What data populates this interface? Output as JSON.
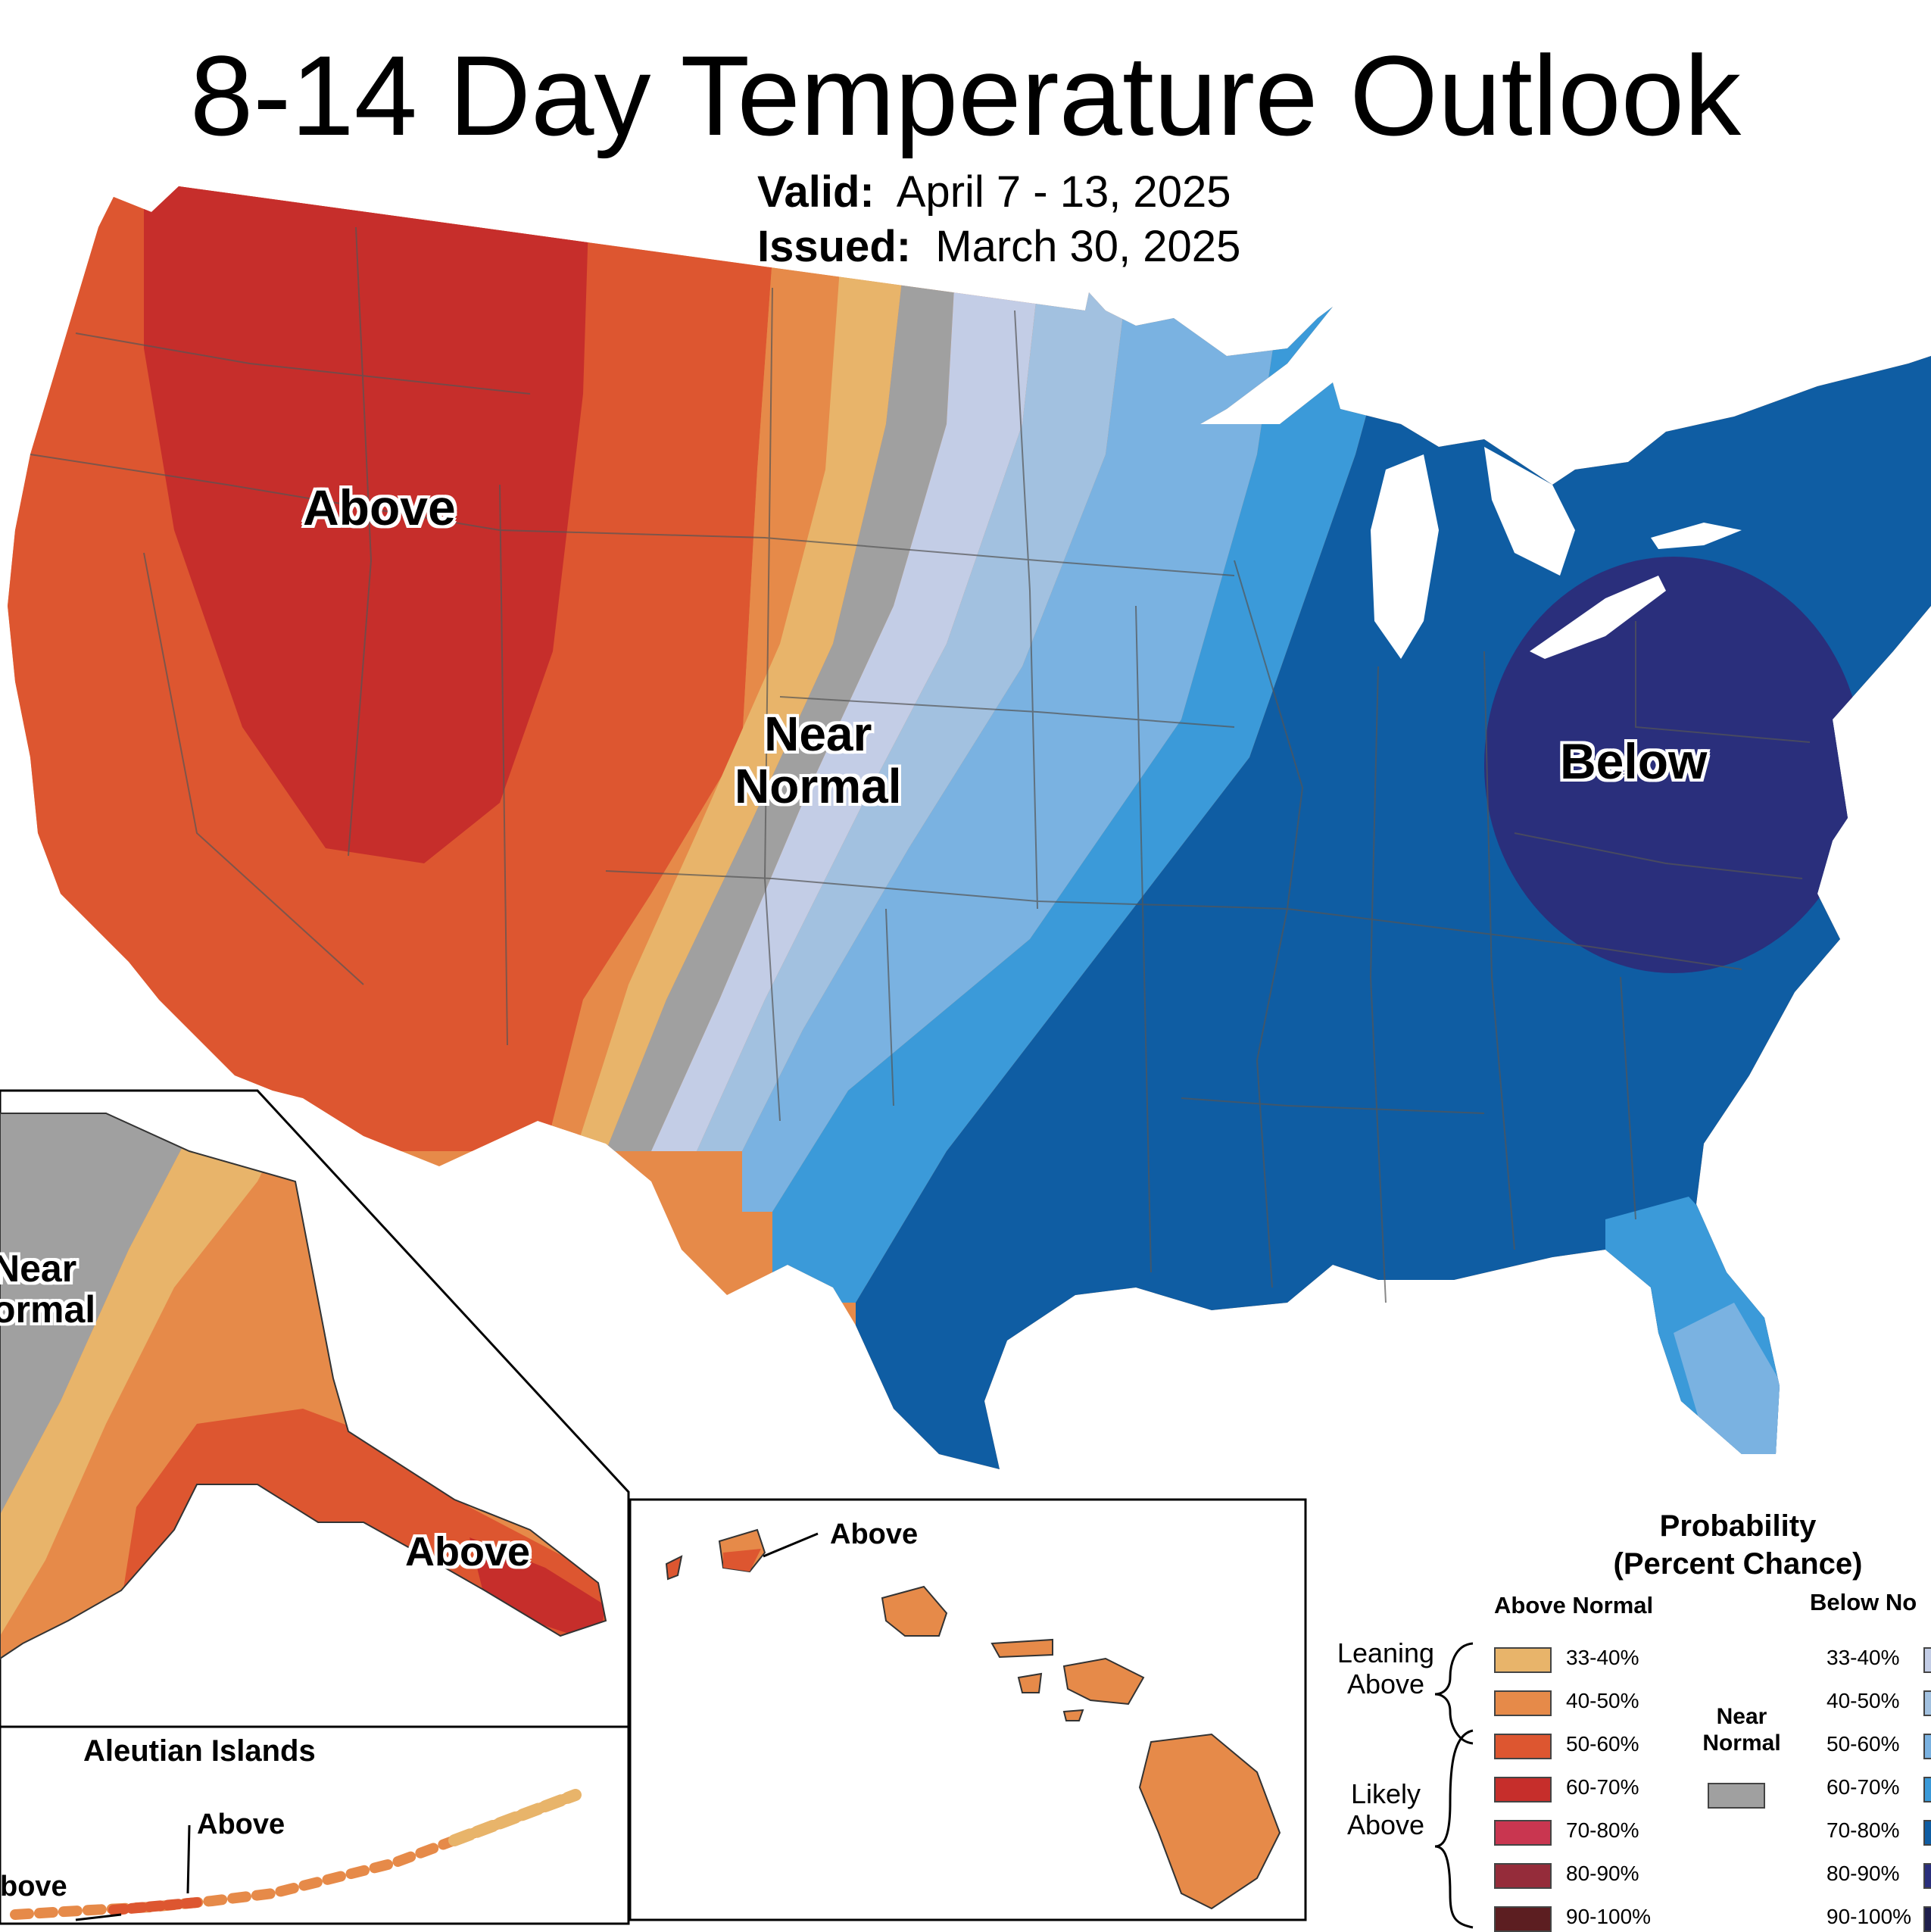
{
  "title": "8-14 Day Temperature Outlook",
  "valid": {
    "label": "Valid:",
    "value": "April 7 - 13, 2025"
  },
  "issued": {
    "label": "Issued:",
    "value": "March 30, 2025"
  },
  "map_labels": {
    "west": "Above",
    "center_line1": "Near",
    "center_line2": "Normal",
    "east": "Below",
    "alaska_near_line1": "Near",
    "alaska_near_line2": "ormal",
    "alaska_above": "Above",
    "aleutian_title": "Aleutian Islands",
    "aleutian_above1": "Above",
    "aleutian_above2": "bove",
    "hawaii_above": "Above"
  },
  "legend": {
    "title_line1": "Probability",
    "title_line2": "(Percent Chance)",
    "above_header": "Above Normal",
    "below_header": "Below No",
    "leaning_line1": "Leaning",
    "leaning_line2": "Above",
    "likely_line1": "Likely",
    "likely_line2": "Above",
    "near_line1": "Near",
    "near_line2": "Normal",
    "near_color": "#a0a0a0",
    "above": [
      {
        "label": "33-40%",
        "color": "#e8b46a"
      },
      {
        "label": "40-50%",
        "color": "#e68a49"
      },
      {
        "label": "50-60%",
        "color": "#dd5630"
      },
      {
        "label": "60-70%",
        "color": "#c62e2b"
      },
      {
        "label": "70-80%",
        "color": "#c93650"
      },
      {
        "label": "80-90%",
        "color": "#952c3a"
      },
      {
        "label": "90-100%",
        "color": "#5c1e21"
      }
    ],
    "below": [
      {
        "label": "33-40%",
        "color": "#c3cde6"
      },
      {
        "label": "40-50%",
        "color": "#a2c1e0"
      },
      {
        "label": "50-60%",
        "color": "#7ab2e1"
      },
      {
        "label": "60-70%",
        "color": "#3b9ad9"
      },
      {
        "label": "70-80%",
        "color": "#0f5da3"
      },
      {
        "label": "80-90%",
        "color": "#2a2f7c"
      },
      {
        "label": "90-100%",
        "color": "#1e1e4c"
      }
    ]
  }
}
